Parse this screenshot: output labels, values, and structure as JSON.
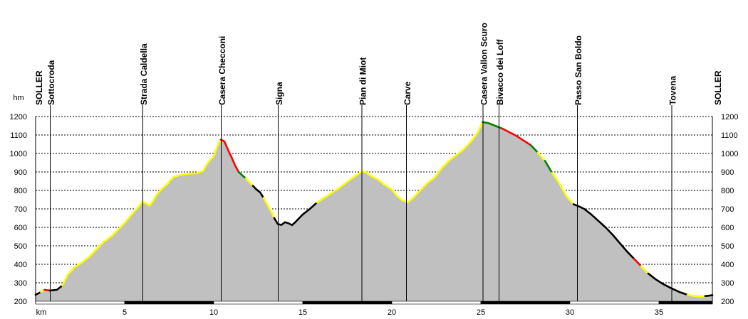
{
  "chart_data": {
    "type": "area",
    "xlabel": "km",
    "ylabel": "hm",
    "xlim": [
      0,
      38
    ],
    "ylim": [
      200,
      1200
    ],
    "xticks": [
      5,
      10,
      15,
      20,
      25,
      30,
      35
    ],
    "yticks": [
      200,
      300,
      400,
      500,
      600,
      700,
      800,
      900,
      1000,
      1100,
      1200
    ],
    "grid": true,
    "waypoints": [
      {
        "name": "SOLLER",
        "km": 0
      },
      {
        "name": "Sottocroda",
        "km": 0.8
      },
      {
        "name": "Strada Caldella",
        "km": 6.0
      },
      {
        "name": "Casera Checconi",
        "km": 10.4
      },
      {
        "name": "Signa",
        "km": 13.6
      },
      {
        "name": "Pian di Miot",
        "km": 18.3
      },
      {
        "name": "Carve",
        "km": 20.8
      },
      {
        "name": "Casera Vallon Scuro",
        "km": 25.1
      },
      {
        "name": "Bivacco dei Loff",
        "km": 26.0
      },
      {
        "name": "Passo San Boldo",
        "km": 30.4
      },
      {
        "name": "Tovena",
        "km": 35.7
      },
      {
        "name": "SOLLER",
        "km": 38
      }
    ],
    "profile": [
      [
        0.0,
        235
      ],
      [
        0.3,
        250
      ],
      [
        0.5,
        262
      ],
      [
        0.8,
        258
      ],
      [
        1.0,
        260
      ],
      [
        1.2,
        262
      ],
      [
        1.5,
        285
      ],
      [
        1.8,
        345
      ],
      [
        2.2,
        385
      ],
      [
        2.6,
        410
      ],
      [
        3.0,
        440
      ],
      [
        3.4,
        480
      ],
      [
        3.8,
        520
      ],
      [
        4.2,
        548
      ],
      [
        4.6,
        585
      ],
      [
        5.0,
        625
      ],
      [
        5.4,
        670
      ],
      [
        5.8,
        715
      ],
      [
        6.0,
        740
      ],
      [
        6.2,
        730
      ],
      [
        6.4,
        718
      ],
      [
        6.6,
        745
      ],
      [
        6.8,
        778
      ],
      [
        7.0,
        800
      ],
      [
        7.4,
        835
      ],
      [
        7.6,
        860
      ],
      [
        7.8,
        875
      ],
      [
        8.2,
        885
      ],
      [
        8.6,
        890
      ],
      [
        9.0,
        893
      ],
      [
        9.4,
        905
      ],
      [
        9.6,
        940
      ],
      [
        9.8,
        965
      ],
      [
        10.0,
        985
      ],
      [
        10.2,
        1040
      ],
      [
        10.4,
        1075
      ],
      [
        10.6,
        1065
      ],
      [
        10.8,
        1020
      ],
      [
        11.0,
        980
      ],
      [
        11.2,
        935
      ],
      [
        11.4,
        900
      ],
      [
        11.6,
        882
      ],
      [
        11.8,
        865
      ],
      [
        12.0,
        845
      ],
      [
        12.2,
        825
      ],
      [
        12.4,
        805
      ],
      [
        12.6,
        790
      ],
      [
        12.8,
        760
      ],
      [
        13.0,
        725
      ],
      [
        13.2,
        690
      ],
      [
        13.4,
        650
      ],
      [
        13.6,
        618
      ],
      [
        13.8,
        613
      ],
      [
        14.0,
        628
      ],
      [
        14.2,
        622
      ],
      [
        14.4,
        612
      ],
      [
        14.6,
        630
      ],
      [
        14.8,
        650
      ],
      [
        15.0,
        670
      ],
      [
        15.4,
        700
      ],
      [
        15.8,
        735
      ],
      [
        16.2,
        760
      ],
      [
        16.6,
        785
      ],
      [
        17.0,
        810
      ],
      [
        17.4,
        840
      ],
      [
        17.8,
        868
      ],
      [
        18.2,
        895
      ],
      [
        18.4,
        903
      ],
      [
        18.6,
        895
      ],
      [
        18.8,
        880
      ],
      [
        19.2,
        860
      ],
      [
        19.6,
        830
      ],
      [
        20.0,
        805
      ],
      [
        20.3,
        770
      ],
      [
        20.6,
        745
      ],
      [
        20.9,
        735
      ],
      [
        21.2,
        760
      ],
      [
        21.6,
        800
      ],
      [
        22.0,
        840
      ],
      [
        22.4,
        870
      ],
      [
        22.8,
        920
      ],
      [
        23.2,
        960
      ],
      [
        23.6,
        990
      ],
      [
        24.0,
        1020
      ],
      [
        24.4,
        1060
      ],
      [
        24.8,
        1110
      ],
      [
        25.1,
        1170
      ],
      [
        25.4,
        1165
      ],
      [
        25.8,
        1150
      ],
      [
        26.2,
        1135
      ],
      [
        26.6,
        1115
      ],
      [
        27.0,
        1095
      ],
      [
        27.4,
        1070
      ],
      [
        27.8,
        1045
      ],
      [
        28.2,
        1005
      ],
      [
        28.6,
        960
      ],
      [
        29.0,
        895
      ],
      [
        29.4,
        840
      ],
      [
        29.8,
        770
      ],
      [
        30.2,
        725
      ],
      [
        30.4,
        718
      ],
      [
        30.8,
        700
      ],
      [
        31.2,
        670
      ],
      [
        31.6,
        635
      ],
      [
        32.0,
        600
      ],
      [
        32.4,
        560
      ],
      [
        32.8,
        515
      ],
      [
        33.2,
        470
      ],
      [
        33.6,
        430
      ],
      [
        34.0,
        390
      ],
      [
        34.4,
        350
      ],
      [
        34.8,
        320
      ],
      [
        35.2,
        295
      ],
      [
        35.7,
        270
      ],
      [
        36.2,
        248
      ],
      [
        36.6,
        235
      ],
      [
        37.0,
        228
      ],
      [
        37.4,
        226
      ],
      [
        37.8,
        230
      ],
      [
        38.0,
        233
      ]
    ],
    "segments": [
      {
        "from": 0.0,
        "to": 0.3,
        "color": "#000000"
      },
      {
        "from": 0.3,
        "to": 0.5,
        "color": "#ffff00"
      },
      {
        "from": 0.5,
        "to": 0.8,
        "color": "#ff0000"
      },
      {
        "from": 0.8,
        "to": 1.5,
        "color": "#000000"
      },
      {
        "from": 1.5,
        "to": 10.4,
        "color": "#ffff00"
      },
      {
        "from": 10.4,
        "to": 11.4,
        "color": "#ff0000"
      },
      {
        "from": 11.4,
        "to": 11.8,
        "color": "#008000"
      },
      {
        "from": 11.8,
        "to": 12.2,
        "color": "#ffff00"
      },
      {
        "from": 12.2,
        "to": 12.8,
        "color": "#000000"
      },
      {
        "from": 12.8,
        "to": 13.4,
        "color": "#ffff00"
      },
      {
        "from": 13.4,
        "to": 15.8,
        "color": "#000000"
      },
      {
        "from": 15.8,
        "to": 25.1,
        "color": "#ffff00"
      },
      {
        "from": 25.1,
        "to": 26.2,
        "color": "#008000"
      },
      {
        "from": 26.2,
        "to": 27.8,
        "color": "#ff0000"
      },
      {
        "from": 27.8,
        "to": 28.2,
        "color": "#008000"
      },
      {
        "from": 28.2,
        "to": 28.6,
        "color": "#ffff00"
      },
      {
        "from": 28.6,
        "to": 29.0,
        "color": "#008000"
      },
      {
        "from": 29.0,
        "to": 30.2,
        "color": "#ffff00"
      },
      {
        "from": 30.2,
        "to": 33.6,
        "color": "#000000"
      },
      {
        "from": 33.6,
        "to": 34.0,
        "color": "#ff0000"
      },
      {
        "from": 34.0,
        "to": 34.4,
        "color": "#ffff00"
      },
      {
        "from": 34.4,
        "to": 36.6,
        "color": "#000000"
      },
      {
        "from": 36.6,
        "to": 37.6,
        "color": "#ffff00"
      },
      {
        "from": 37.6,
        "to": 38.0,
        "color": "#000000"
      }
    ],
    "colors": {
      "fill": "#c0c0c0",
      "grid": "#000000",
      "axis_bar_dark": "#000000"
    }
  }
}
